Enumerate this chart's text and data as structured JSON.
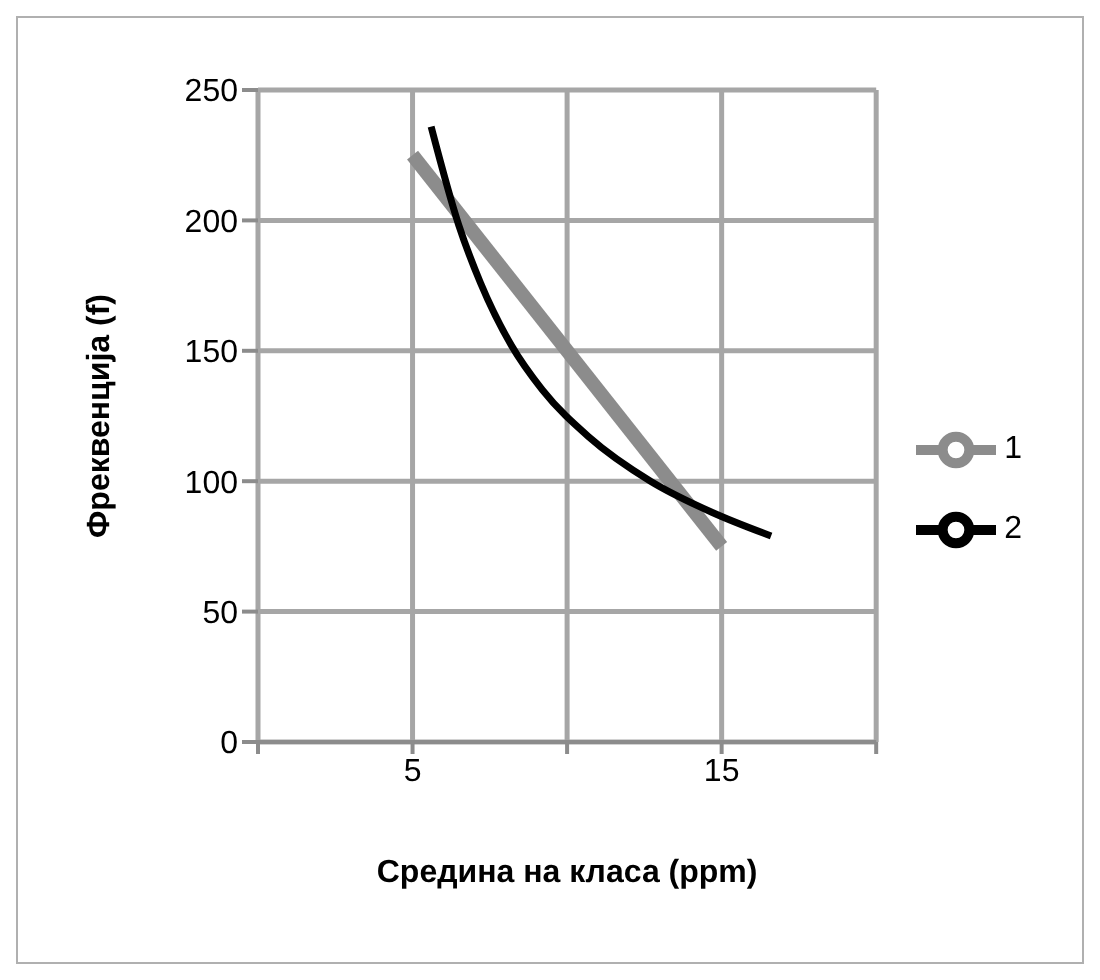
{
  "chart_data": {
    "type": "line",
    "xlabel": "Средина на класа  (ppm)",
    "ylabel": "Фреквенција  (f)",
    "xlim": [
      0,
      20
    ],
    "xticks": [
      {
        "value": 0,
        "label": null
      },
      5,
      {
        "value": 10,
        "label": null
      },
      15,
      {
        "value": 20,
        "label": null
      }
    ],
    "ylim": [
      0,
      250
    ],
    "yticks": [
      0,
      50,
      100,
      150,
      200,
      250
    ],
    "grid": true,
    "legend": "right",
    "series": [
      {
        "name": "1",
        "color": "#8c8c8c",
        "x": [
          5,
          15
        ],
        "values": [
          225,
          75
        ]
      },
      {
        "name": "2",
        "color": "#000000",
        "x": [
          5.6,
          6.5,
          7.2,
          8.2,
          9.2,
          10.7,
          12.7,
          14.7,
          16.6
        ],
        "values": [
          236,
          198,
          176,
          152,
          135,
          117,
          100,
          88,
          79
        ]
      }
    ]
  }
}
